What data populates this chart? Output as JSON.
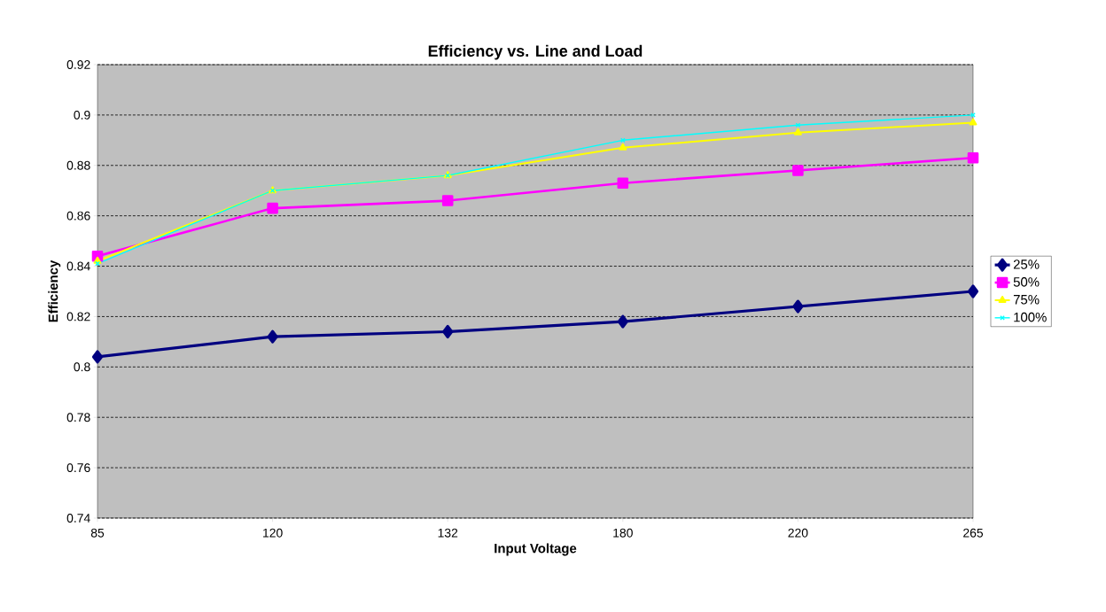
{
  "chart_data": {
    "type": "line",
    "title": "Efficiency vs. Line and Load",
    "xlabel": "Input Voltage",
    "ylabel": "Efficiency",
    "categories": [
      "85",
      "120",
      "132",
      "180",
      "220",
      "265"
    ],
    "series": [
      {
        "name": "25%",
        "color": "#000080",
        "marker": "diamond",
        "values": [
          0.804,
          0.812,
          0.814,
          0.818,
          0.824,
          0.83
        ]
      },
      {
        "name": "50%",
        "color": "#ff00ff",
        "marker": "square",
        "values": [
          0.844,
          0.863,
          0.866,
          0.873,
          0.878,
          0.883
        ]
      },
      {
        "name": "75%",
        "color": "#ffff00",
        "marker": "triangle",
        "values": [
          0.842,
          0.87,
          0.876,
          0.887,
          0.893,
          0.897
        ]
      },
      {
        "name": "100%",
        "color": "#00ffff",
        "marker": "cross",
        "values": [
          0.841,
          0.87,
          0.876,
          0.89,
          0.896,
          0.9
        ]
      }
    ],
    "ylim": [
      0.74,
      0.92
    ],
    "yticks": [
      0.74,
      0.76,
      0.78,
      0.8,
      0.82,
      0.84,
      0.86,
      0.88,
      0.9,
      0.92
    ],
    "grid": "y",
    "legend": "right",
    "line_style": "solid"
  }
}
